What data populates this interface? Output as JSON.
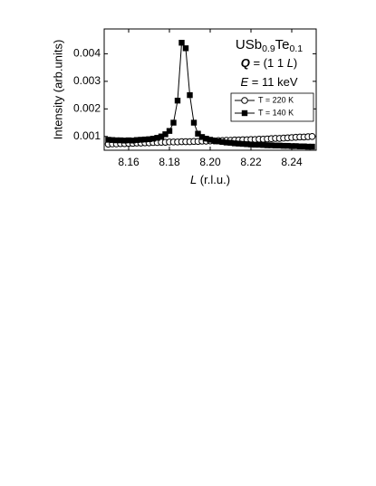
{
  "chart_data": {
    "type": "line",
    "annotations": [
      [
        {
          "text": "USb"
        },
        {
          "text": "0.9",
          "baseline": "sub"
        },
        {
          "text": "Te"
        },
        {
          "text": "0.1",
          "baseline": "sub"
        }
      ],
      [
        {
          "text": "Q",
          "style": "bold-italic"
        },
        {
          "text": " = (1 1 "
        },
        {
          "text": "L",
          "style": "italic"
        },
        {
          "text": ")"
        }
      ],
      [
        {
          "text": "E",
          "style": "italic"
        },
        {
          "text": " = 11 keV"
        }
      ]
    ],
    "xlabel": [
      {
        "text": "L",
        "style": "italic"
      },
      {
        "text": " (r.l.u.)"
      }
    ],
    "ylabel": "Intensity (arb.units)",
    "x": [
      8.15,
      8.152,
      8.154,
      8.156,
      8.158,
      8.16,
      8.162,
      8.164,
      8.166,
      8.168,
      8.17,
      8.172,
      8.174,
      8.176,
      8.178,
      8.18,
      8.182,
      8.184,
      8.186,
      8.188,
      8.19,
      8.192,
      8.194,
      8.196,
      8.198,
      8.2,
      8.202,
      8.204,
      8.206,
      8.208,
      8.21,
      8.212,
      8.214,
      8.216,
      8.218,
      8.22,
      8.222,
      8.224,
      8.226,
      8.228,
      8.23,
      8.232,
      8.234,
      8.236,
      8.238,
      8.24,
      8.242,
      8.244,
      8.246,
      8.248,
      8.25
    ],
    "series": [
      {
        "name": "T = 220 K",
        "color": "#000000",
        "marker": "open-circle",
        "values": [
          0.00072,
          0.00073,
          0.00073,
          0.00074,
          0.00074,
          0.00075,
          0.00075,
          0.00076,
          0.00076,
          0.00077,
          0.00077,
          0.00078,
          0.00078,
          0.00079,
          0.00079,
          0.0008,
          0.0008,
          0.0008,
          0.00081,
          0.00081,
          0.00081,
          0.00082,
          0.00082,
          0.00083,
          0.00083,
          0.00084,
          0.00084,
          0.00085,
          0.00085,
          0.00086,
          0.00086,
          0.00087,
          0.00087,
          0.00088,
          0.00088,
          0.00089,
          0.00089,
          0.0009,
          0.0009,
          0.00091,
          0.00092,
          0.00093,
          0.00093,
          0.00094,
          0.00095,
          0.00096,
          0.00097,
          0.00098,
          0.00098,
          0.00099,
          0.001
        ]
      },
      {
        "name": "T = 140 K",
        "color": "#000000",
        "marker": "filled-square",
        "values": [
          0.00088,
          0.00087,
          0.00086,
          0.00086,
          0.00085,
          0.00086,
          0.00085,
          0.00087,
          0.00088,
          0.00089,
          0.0009,
          0.00092,
          0.00095,
          0.001,
          0.00108,
          0.0012,
          0.0015,
          0.0023,
          0.0044,
          0.0042,
          0.0025,
          0.0015,
          0.0011,
          0.00098,
          0.00092,
          0.00088,
          0.00085,
          0.00082,
          0.0008,
          0.00078,
          0.00077,
          0.00075,
          0.00074,
          0.00073,
          0.00072,
          0.00071,
          0.0007,
          0.0007,
          0.00069,
          0.00068,
          0.00068,
          0.00067,
          0.00067,
          0.00066,
          0.00066,
          0.00065,
          0.00065,
          0.00064,
          0.00064,
          0.00063,
          0.00063
        ]
      }
    ],
    "xlim": [
      8.148,
      8.252
    ],
    "xticks": [
      8.16,
      8.18,
      {
        "value": 8.2,
        "label": "8.20"
      },
      8.22,
      8.24
    ],
    "ylim": [
      0.0005,
      0.0049
    ],
    "yticks": [
      0.001,
      0.002,
      0.003,
      0.004
    ],
    "grid": false,
    "legend": "right"
  }
}
